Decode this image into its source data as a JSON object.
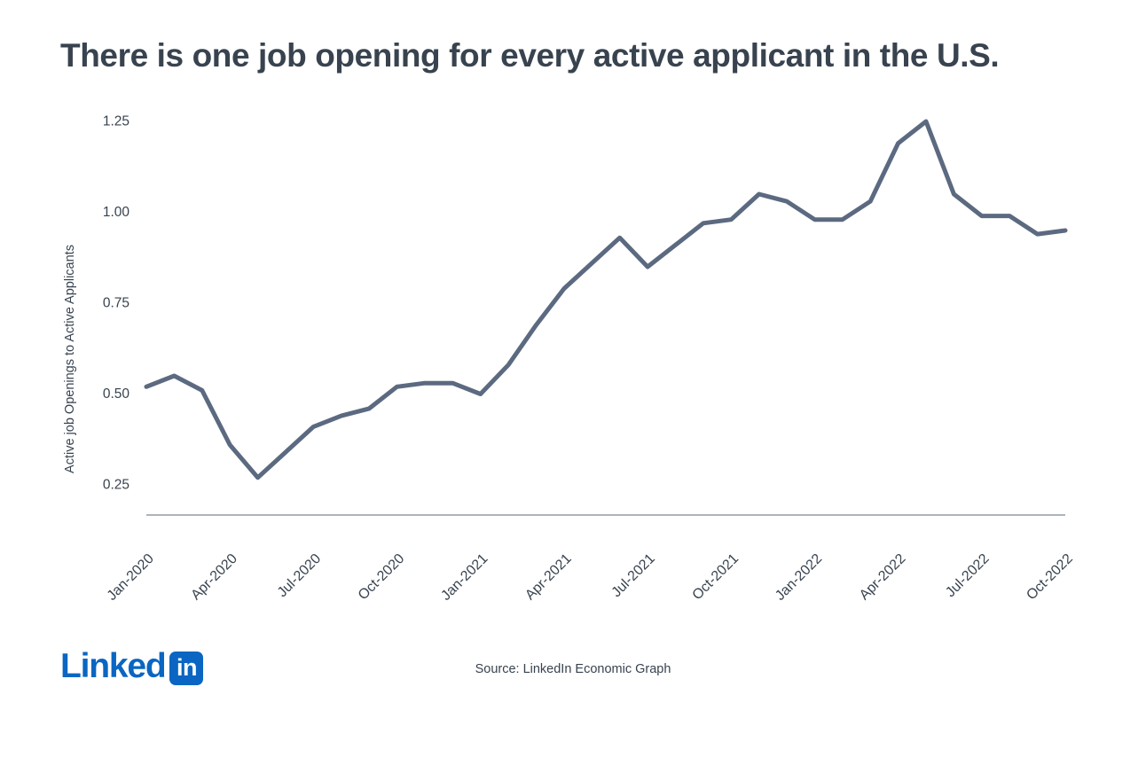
{
  "header": {
    "title": "There is one job opening for every active applicant in the U.S."
  },
  "footer": {
    "logo": {
      "wordmark": "Linked",
      "badge_text": "in"
    },
    "source": "Source: LinkedIn Economic Graph"
  },
  "colors": {
    "background": "#FFFFFF",
    "title_text": "#38434F",
    "axis_text": "#38434F",
    "line": "#5B6A80",
    "axis_line": "#7A8795",
    "linkedin_blue": "#0A66C2"
  },
  "chart_data": {
    "type": "line",
    "title": "There is one job opening for every active applicant in the U.S.",
    "xlabel": "",
    "ylabel": "Active job Openings to Active Applicants",
    "x": [
      "Jan-2020",
      "Feb-2020",
      "Mar-2020",
      "Apr-2020",
      "May-2020",
      "Jun-2020",
      "Jul-2020",
      "Aug-2020",
      "Sep-2020",
      "Oct-2020",
      "Nov-2020",
      "Dec-2020",
      "Jan-2021",
      "Feb-2021",
      "Mar-2021",
      "Apr-2021",
      "May-2021",
      "Jun-2021",
      "Jul-2021",
      "Aug-2021",
      "Sep-2021",
      "Oct-2021",
      "Nov-2021",
      "Dec-2021",
      "Jan-2022",
      "Feb-2022",
      "Mar-2022",
      "Apr-2022",
      "May-2022",
      "Jun-2022",
      "Jul-2022",
      "Aug-2022",
      "Sep-2022",
      "Oct-2022"
    ],
    "values": [
      0.52,
      0.55,
      0.51,
      0.36,
      0.27,
      0.34,
      0.41,
      0.44,
      0.46,
      0.52,
      0.53,
      0.53,
      0.5,
      0.58,
      0.69,
      0.79,
      0.86,
      0.93,
      0.85,
      0.91,
      0.97,
      0.98,
      1.05,
      1.03,
      0.98,
      0.98,
      1.03,
      1.19,
      1.25,
      1.05,
      0.99,
      0.99,
      0.94,
      0.95
    ],
    "y_ticks": [
      0.25,
      0.5,
      0.75,
      1.0,
      1.25
    ],
    "x_tick_step": 3,
    "x_tick_labels": [
      "Jan-2020",
      "Apr-2020",
      "Jul-2020",
      "Oct-2020",
      "Jan-2021",
      "Apr-2021",
      "Jul-2021",
      "Oct-2021",
      "Jan-2022",
      "Apr-2022",
      "Jul-2022",
      "Oct-2022"
    ],
    "ylim": [
      0.17,
      1.3
    ],
    "grid": false,
    "legend": false,
    "line_color": "#5B6A80"
  }
}
